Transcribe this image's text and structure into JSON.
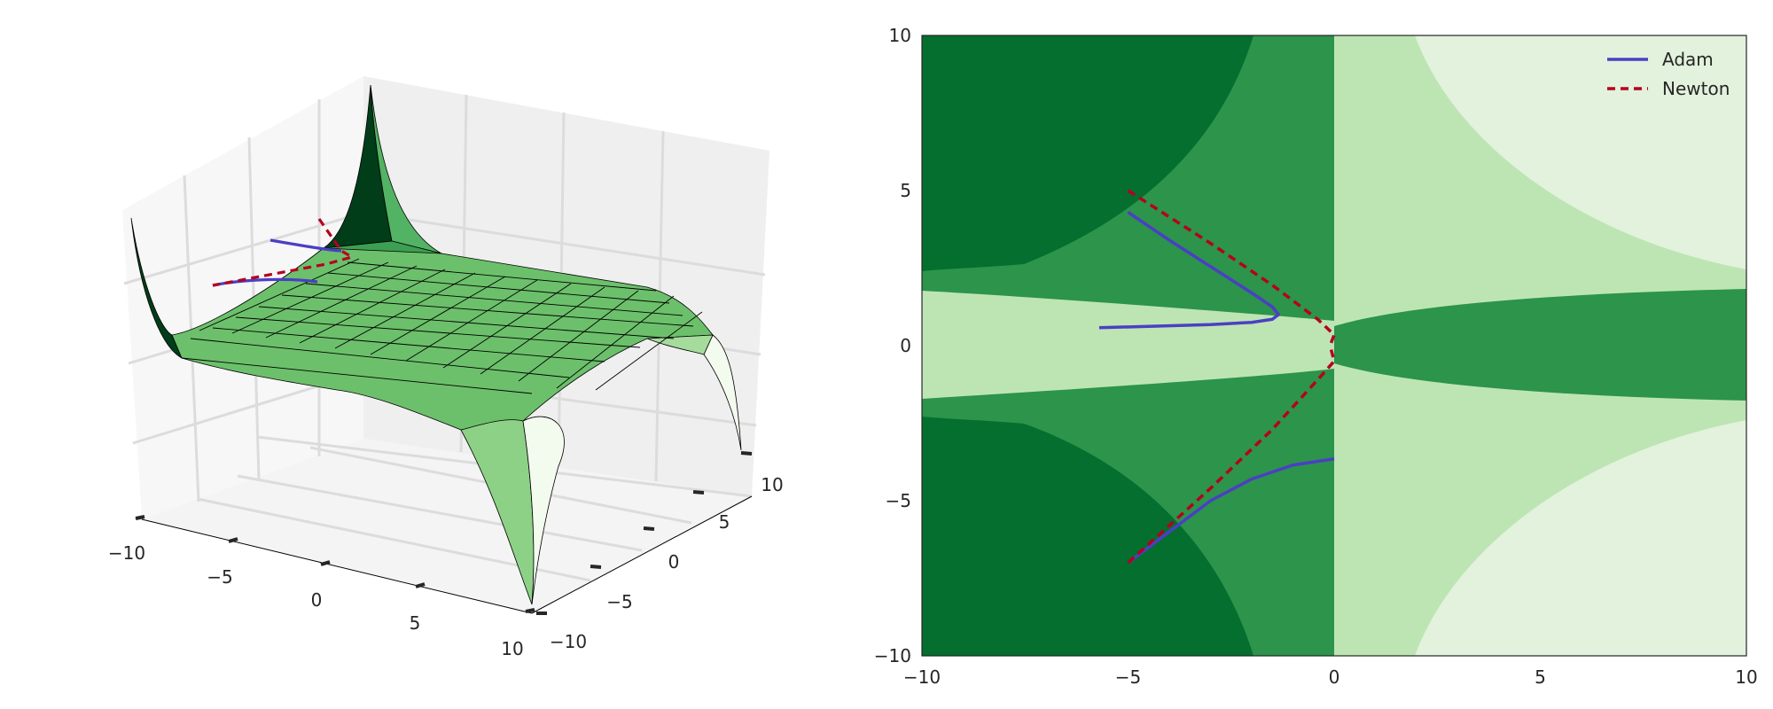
{
  "chart_data": [
    {
      "type": "surface",
      "xlim": [
        -10,
        10
      ],
      "ylim": [
        -10,
        10
      ],
      "x_ticks": [
        -10,
        -5,
        0,
        5,
        10
      ],
      "y_ticks": [
        -10,
        -5,
        0,
        5,
        10
      ],
      "x_tick_labels": [
        "−10",
        "−5",
        "0",
        "5",
        "10"
      ],
      "y_tick_labels": [
        "−10",
        "−5",
        "0",
        "5",
        "10"
      ],
      "surface_color": "#66bd63",
      "edge_color": "#000000",
      "grid": true,
      "series": [
        {
          "name": "Adam",
          "color": "#4b3fc4",
          "style": "solid",
          "x": [
            -5.6,
            -4,
            -2,
            -1.6,
            -1.4,
            -1.3,
            -1.2
          ],
          "y": [
            0.6,
            0.7,
            0.8,
            0.9,
            1.0,
            1.0,
            1.1
          ]
        },
        {
          "name": "Newton",
          "color": "#b5001f",
          "style": "dashed",
          "x": [
            -5.0,
            -1.5,
            -0.5,
            0.0,
            0.0
          ],
          "y": [
            5.0,
            1.5,
            0.5,
            0.1,
            0.0
          ]
        }
      ]
    },
    {
      "type": "contour",
      "xlim": [
        -10,
        10
      ],
      "ylim": [
        -10,
        10
      ],
      "x_ticks": [
        -10,
        -5,
        0,
        5,
        10
      ],
      "y_ticks": [
        -10,
        -5,
        0,
        5,
        10
      ],
      "x_tick_labels": [
        "−10",
        "−5",
        "0",
        "5",
        "10"
      ],
      "y_tick_labels": [
        "−10",
        "−5",
        "0",
        "5",
        "10"
      ],
      "level_colors": [
        "#e2f2dc",
        "#bde5b4",
        "#2c944b",
        "#046f2e"
      ],
      "legend_position": "top-right",
      "series": [
        {
          "name": "Adam",
          "color": "#4b3fc4",
          "style": "solid",
          "x": [
            -5.7,
            -4.5,
            -3.0,
            -2.0,
            -1.5,
            -1.35,
            -1.5,
            -2.0,
            -3.0,
            -4.0,
            -5.0
          ],
          "y": [
            0.58,
            0.62,
            0.68,
            0.75,
            0.85,
            1.0,
            1.25,
            1.7,
            2.55,
            3.4,
            4.3
          ]
        },
        {
          "name": "Adam",
          "color": "#4b3fc4",
          "style": "solid",
          "x": [
            -5.0,
            -4.0,
            -3.0,
            -2.0,
            -1.0,
            0.0
          ],
          "y": [
            -7.0,
            -6.0,
            -5.0,
            -4.3,
            -3.85,
            -3.65
          ]
        },
        {
          "name": "Newton",
          "color": "#b5001f",
          "style": "dashed",
          "x": [
            -5.0,
            -3.0,
            -1.5,
            -0.4,
            0.0,
            -0.1
          ],
          "y": [
            5.0,
            3.3,
            1.95,
            0.85,
            0.35,
            0.0
          ]
        },
        {
          "name": "Newton",
          "color": "#b5001f",
          "style": "dashed",
          "x": [
            -5.0,
            -3.0,
            -1.5,
            -0.4,
            0.0,
            -0.1
          ],
          "y": [
            -7.0,
            -4.6,
            -2.7,
            -1.1,
            -0.5,
            0.0
          ]
        }
      ],
      "legend": [
        {
          "label": "Adam",
          "color": "#4b3fc4",
          "style": "solid"
        },
        {
          "label": "Newton",
          "color": "#b5001f",
          "style": "dashed"
        }
      ]
    }
  ]
}
